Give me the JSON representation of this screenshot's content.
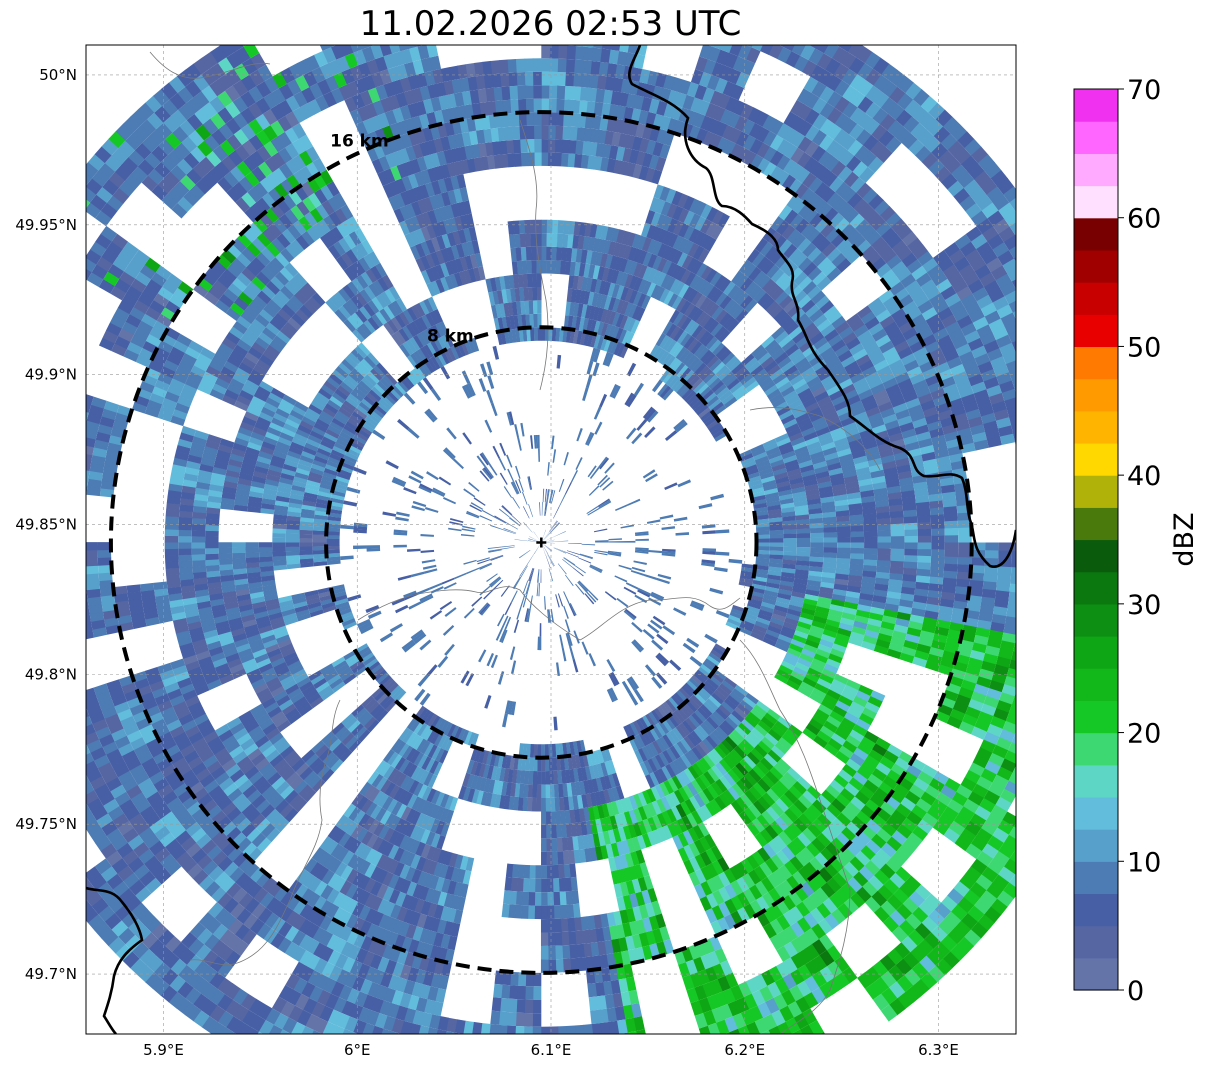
{
  "title": "11.02.2026 02:53 UTC",
  "map": {
    "lon_range": [
      5.86,
      6.34
    ],
    "lat_range": [
      49.68,
      50.01
    ],
    "x_ticks": [
      {
        "value": 5.9,
        "label": "5.9°E"
      },
      {
        "value": 6.0,
        "label": "6°E"
      },
      {
        "value": 6.1,
        "label": "6.1°E"
      },
      {
        "value": 6.2,
        "label": "6.2°E"
      },
      {
        "value": 6.3,
        "label": "6.3°E"
      }
    ],
    "y_ticks": [
      {
        "value": 50.0,
        "label": "50°N"
      },
      {
        "value": 49.95,
        "label": "49.95°N"
      },
      {
        "value": 49.9,
        "label": "49.9°N"
      },
      {
        "value": 49.85,
        "label": "49.85°N"
      },
      {
        "value": 49.8,
        "label": "49.8°N"
      },
      {
        "value": 49.75,
        "label": "49.75°N"
      },
      {
        "value": 49.7,
        "label": "49.7°N"
      }
    ],
    "gridlines": true,
    "radar_site": {
      "lon": 6.095,
      "lat": 49.844
    },
    "range_rings": [
      {
        "label": "8 km",
        "radius_km": 8
      },
      {
        "label": "16 km",
        "radius_km": 16
      }
    ]
  },
  "colorbar": {
    "label": "dBZ",
    "min": 0,
    "max": 70,
    "step": 2.5,
    "ticks": [
      {
        "value": 0,
        "label": "0"
      },
      {
        "value": 10,
        "label": "10"
      },
      {
        "value": 20,
        "label": "20"
      },
      {
        "value": 30,
        "label": "30"
      },
      {
        "value": 40,
        "label": "40"
      },
      {
        "value": 50,
        "label": "50"
      },
      {
        "value": 60,
        "label": "60"
      },
      {
        "value": 70,
        "label": "70"
      }
    ],
    "colors": [
      "#6574a8",
      "#5666a3",
      "#465fa5",
      "#4d7bb3",
      "#58a0cc",
      "#62bcdc",
      "#5ed6c6",
      "#3ed873",
      "#15c825",
      "#12b81a",
      "#0fa615",
      "#0c8f12",
      "#0a780f",
      "#0a5c0c",
      "#4a7a0c",
      "#b0b20a",
      "#ffd800",
      "#ffb400",
      "#ff9a00",
      "#ff7a00",
      "#e80000",
      "#c80000",
      "#a00000",
      "#780000",
      "#ffe0ff",
      "#ffaaff",
      "#ff66ff",
      "#f032f0"
    ]
  }
}
